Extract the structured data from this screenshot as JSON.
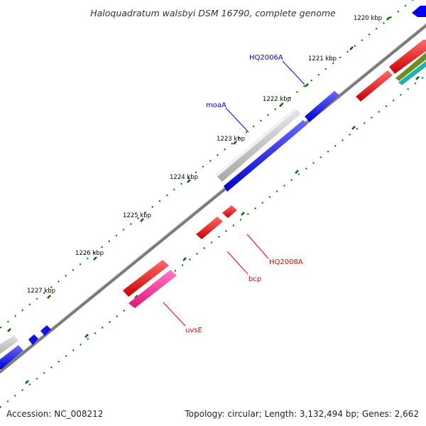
{
  "title": "Haloquadratum walsbyi DSM 16790, complete genome",
  "footer": {
    "accession": "Accession: NC_008212",
    "topology": "Topology: circular; Length: 3,132,494 bp; Genes: 2,662"
  },
  "kbp_labels": [
    "1220 kbp",
    "1221 kbp",
    "1222 kbp",
    "1223 kbp",
    "1224 kbp",
    "1225 kbp",
    "1226 kbp",
    "1227 kbp"
  ],
  "gene_labels": {
    "hq2006a": "HQ2006A",
    "moaa": "moaA",
    "hq2008a": "HQ2008A",
    "bcp": "bcp",
    "uvse": "uvsE"
  },
  "colors": {
    "forward_cds": "#0000ee",
    "reverse_cds": "#ee0000",
    "rna": "#c0c0c0",
    "pink": "#ff2c9a",
    "tick": "#006600",
    "backbone": "#808080"
  }
}
